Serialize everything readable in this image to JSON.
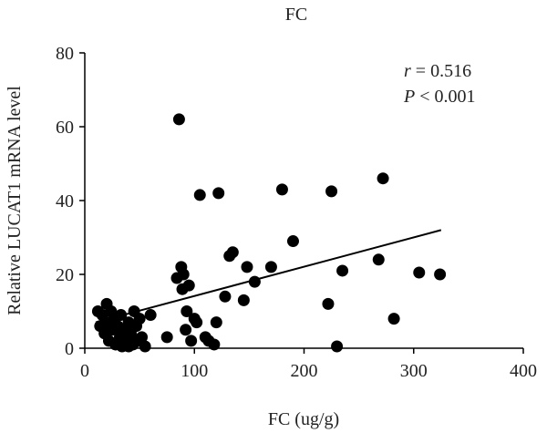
{
  "chart_data": {
    "type": "scatter",
    "title": "FC",
    "xlabel": "FC (ug/g)",
    "ylabel": "Relative LUCAT1 mRNA level",
    "xlim": [
      0,
      400
    ],
    "ylim": [
      0,
      80
    ],
    "xticks": [
      "0",
      "100",
      "200",
      "300",
      "400"
    ],
    "yticks": [
      "0",
      "20",
      "40",
      "60",
      "80"
    ],
    "grid": false,
    "point_color": "#000000",
    "annotations": {
      "r_label": "r",
      "r_value": " = 0.516",
      "p_label": "P",
      "p_value": " < 0.001"
    },
    "trendline": {
      "x": [
        10,
        325
      ],
      "y": [
        7.0,
        32.0
      ]
    },
    "points": [
      [
        12,
        10
      ],
      [
        14,
        6
      ],
      [
        16,
        9
      ],
      [
        18,
        4
      ],
      [
        20,
        12
      ],
      [
        20,
        7
      ],
      [
        22,
        2
      ],
      [
        24,
        10
      ],
      [
        25,
        5
      ],
      [
        27,
        8
      ],
      [
        28,
        1
      ],
      [
        30,
        6
      ],
      [
        32,
        3
      ],
      [
        33,
        9
      ],
      [
        34,
        0.5
      ],
      [
        36,
        5
      ],
      [
        38,
        2
      ],
      [
        40,
        7
      ],
      [
        40,
        0.5
      ],
      [
        42,
        4
      ],
      [
        44,
        1
      ],
      [
        45,
        10
      ],
      [
        47,
        6
      ],
      [
        48,
        2
      ],
      [
        50,
        8
      ],
      [
        52,
        3
      ],
      [
        55,
        0.5
      ],
      [
        60,
        9
      ],
      [
        75,
        3
      ],
      [
        84,
        19
      ],
      [
        86,
        62
      ],
      [
        88,
        22
      ],
      [
        89,
        16
      ],
      [
        90,
        20
      ],
      [
        92,
        5
      ],
      [
        93,
        10
      ],
      [
        95,
        17
      ],
      [
        97,
        2
      ],
      [
        100,
        8
      ],
      [
        102,
        7
      ],
      [
        105,
        41.5
      ],
      [
        110,
        3
      ],
      [
        113,
        2
      ],
      [
        118,
        1
      ],
      [
        120,
        7
      ],
      [
        122,
        42
      ],
      [
        128,
        14
      ],
      [
        132,
        25
      ],
      [
        135,
        26
      ],
      [
        145,
        13
      ],
      [
        148,
        22
      ],
      [
        155,
        18
      ],
      [
        170,
        22
      ],
      [
        180,
        43
      ],
      [
        190,
        29
      ],
      [
        222,
        12
      ],
      [
        225,
        42.5
      ],
      [
        230,
        0.5
      ],
      [
        235,
        21
      ],
      [
        268,
        24
      ],
      [
        272,
        46
      ],
      [
        282,
        8
      ],
      [
        305,
        20.5
      ],
      [
        324,
        20
      ]
    ]
  }
}
